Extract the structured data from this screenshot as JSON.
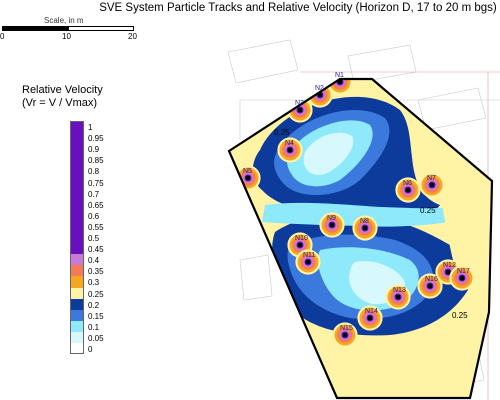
{
  "title": "SVE System Particle Tracks and Relative Velocity (Horizon D, 17 to 20 m bgs)",
  "scale": {
    "label": "Scale, in m",
    "ticks": [
      "0",
      "10",
      "20"
    ]
  },
  "legend": {
    "title_line1": "Relative Velocity",
    "title_line2": "(Vr = V / Vmax)",
    "entries": [
      {
        "label": "1",
        "color": "#6a0fc0"
      },
      {
        "label": "0.95",
        "color": "#6a0fc0"
      },
      {
        "label": "0.9",
        "color": "#6a0fc0"
      },
      {
        "label": "0.85",
        "color": "#6a0fc0"
      },
      {
        "label": "0.8",
        "color": "#6a0fc0"
      },
      {
        "label": "0.75",
        "color": "#6a0fc0"
      },
      {
        "label": "0.7",
        "color": "#6a0fc0"
      },
      {
        "label": "0.65",
        "color": "#6a0fc0"
      },
      {
        "label": "0.6",
        "color": "#6a0fc0"
      },
      {
        "label": "0.55",
        "color": "#6a0fc0"
      },
      {
        "label": "0.5",
        "color": "#6a0fc0"
      },
      {
        "label": "0.45",
        "color": "#6a0fc0"
      },
      {
        "label": "0.4",
        "color": "#c77ad6"
      },
      {
        "label": "0.35",
        "color": "#f57a55"
      },
      {
        "label": "0.3",
        "color": "#f5a81f"
      },
      {
        "label": "0.25",
        "color": "#fff3a6"
      },
      {
        "label": "0.2",
        "color": "#0c3b9c"
      },
      {
        "label": "0.15",
        "color": "#3b79dc"
      },
      {
        "label": "0.1",
        "color": "#8ee9fa"
      },
      {
        "label": "0.05",
        "color": "#d7f8fc"
      },
      {
        "label": "0",
        "color": "#ffffff"
      }
    ]
  },
  "wells": [
    "N1",
    "N2",
    "N3",
    "N7",
    "N4",
    "N5",
    "N6",
    "N8",
    "N9",
    "N10",
    "N11",
    "N12",
    "N13",
    "N14",
    "N15",
    "N16",
    "N17"
  ],
  "contour_labels": [
    "0.25",
    "0.25",
    "0.25"
  ]
}
